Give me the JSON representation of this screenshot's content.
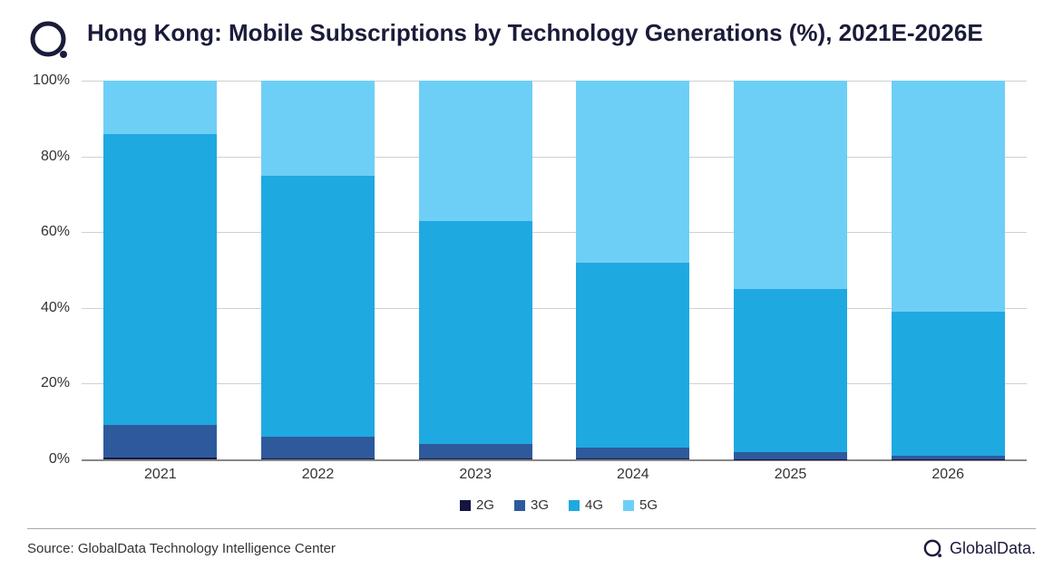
{
  "title": "Hong Kong: Mobile Subscriptions by Technology Generations (%), 2021E-2026E",
  "chart": {
    "type": "stacked-bar",
    "categories": [
      "2021",
      "2022",
      "2023",
      "2024",
      "2025",
      "2026"
    ],
    "series": [
      {
        "name": "2G",
        "color": "#151542",
        "values": [
          0.5,
          0.3,
          0.2,
          0.2,
          0.1,
          0.1
        ]
      },
      {
        "name": "3G",
        "color": "#2e5a9c",
        "values": [
          8.5,
          5.7,
          3.8,
          2.8,
          1.9,
          0.9
        ]
      },
      {
        "name": "4G",
        "color": "#1fa9e1",
        "values": [
          77.0,
          69.0,
          59.0,
          49.0,
          43.0,
          38.0
        ]
      },
      {
        "name": "5G",
        "color": "#6ecff6",
        "values": [
          14.0,
          25.0,
          37.0,
          48.0,
          55.0,
          61.0
        ]
      }
    ],
    "ylim": [
      0,
      100
    ],
    "ytick_step": 20,
    "ytick_suffix": "%",
    "background_color": "#ffffff",
    "grid_color": "#d0d0d0",
    "axis_color": "#888888",
    "label_fontsize": 16,
    "title_fontsize": 26,
    "title_color": "#1b1b3a",
    "bar_width": 0.72
  },
  "source": "Source: GlobalData Technology Intelligence Center",
  "brand": "GlobalData."
}
